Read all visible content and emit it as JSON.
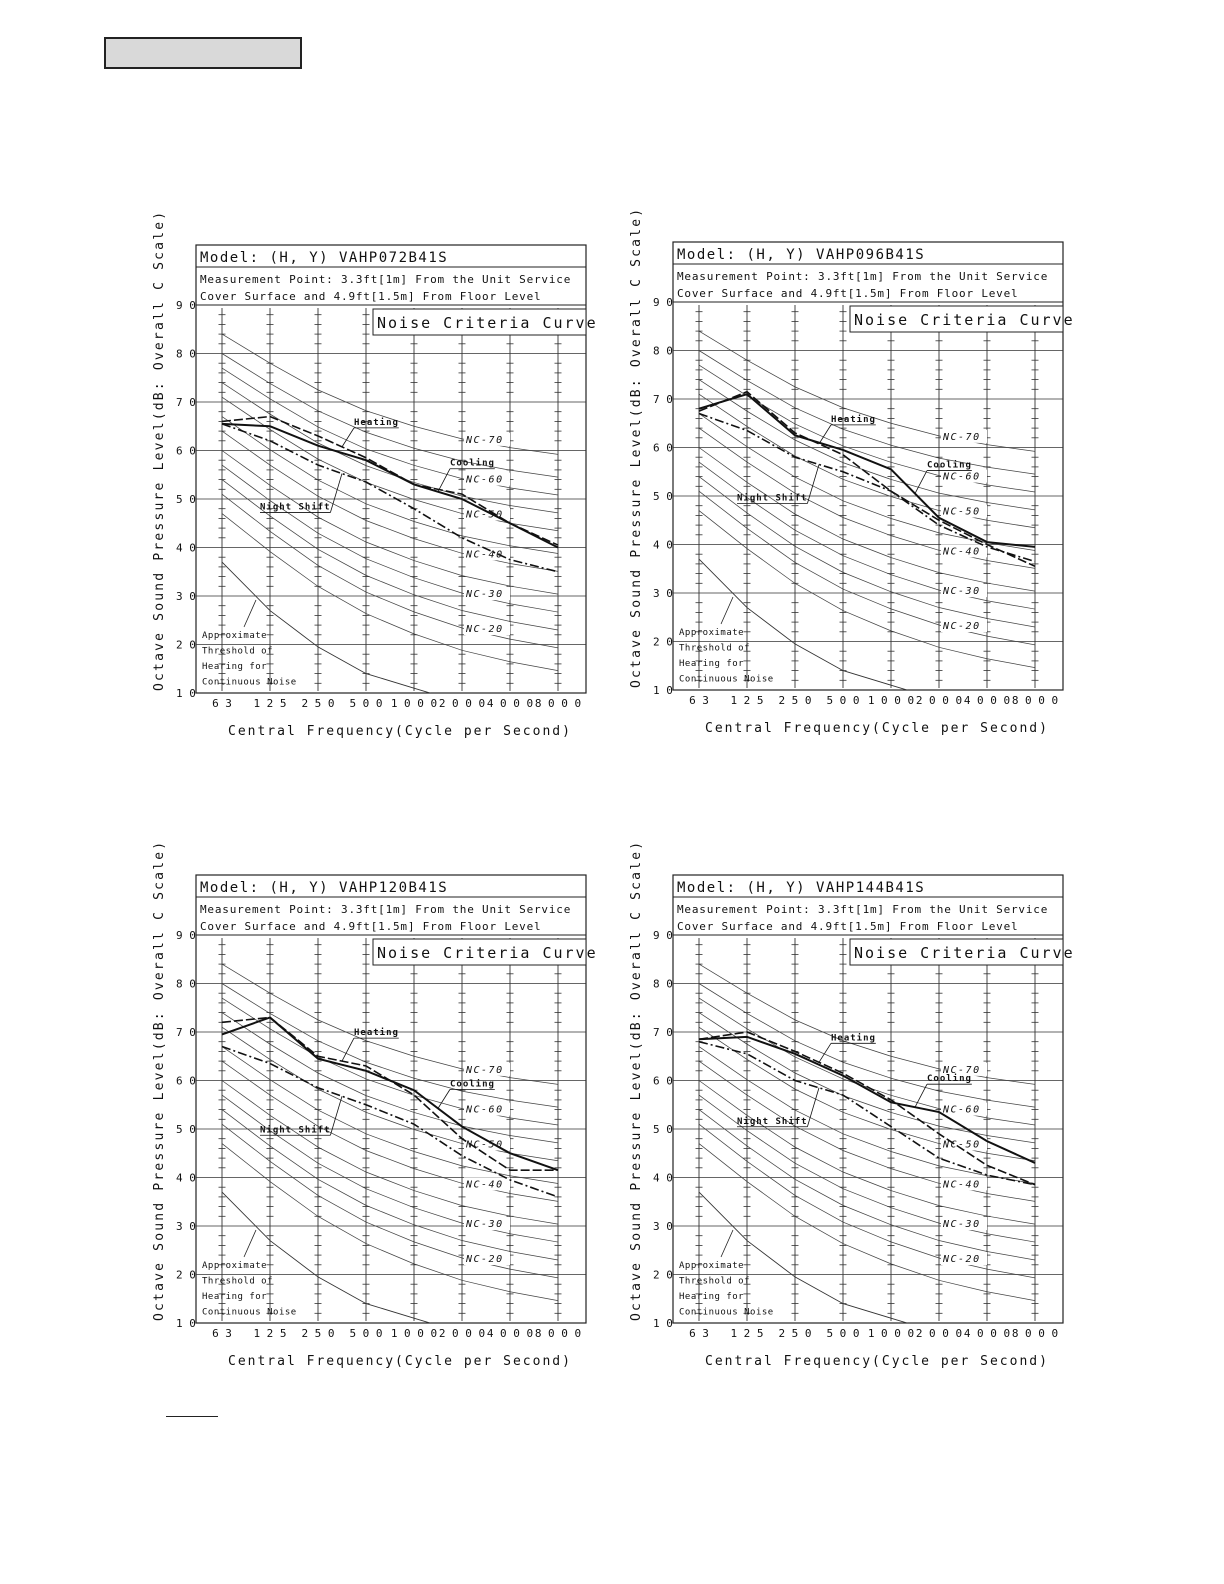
{
  "page": {
    "header_box_text": ""
  },
  "chart_data": [
    {
      "type": "line",
      "title": "Model: (H, Y) VAHP072B41S",
      "subtitle_lines": [
        "Measurement Point: 3.3ft[1m] From the Unit Service",
        "Cover Surface and 4.9ft[1.5m] From Floor Level"
      ],
      "box_label": "Noise Criteria Curve",
      "xlabel": "Central Frequency(Cycle per Second)",
      "ylabel": "Octave Sound Pressure Level(dB: Overall C Scale)",
      "categories": [
        "63",
        "125",
        "250",
        "500",
        "1000",
        "2000",
        "4000",
        "8000"
      ],
      "y_ticks": [
        "90",
        "80",
        "70",
        "60",
        "50",
        "40",
        "30",
        "20",
        "10"
      ],
      "ylim": [
        10,
        90
      ],
      "nc_labels": [
        "NC-70",
        "NC-60",
        "NC-50",
        "NC-40",
        "NC-30",
        "NC-20"
      ],
      "threshold_label": [
        "Approximate",
        "Threshold of",
        "Hearing for",
        "Continuous Noise"
      ],
      "series": [
        {
          "name": "Heating",
          "style": "dashed",
          "values": [
            66,
            67,
            63,
            58.5,
            53,
            51,
            45,
            40.5
          ]
        },
        {
          "name": "Cooling",
          "style": "solid",
          "values": [
            65.5,
            65,
            61,
            58,
            53,
            50,
            45,
            40
          ]
        },
        {
          "name": "Night Shift",
          "style": "dashdot",
          "values": [
            65.5,
            62,
            57,
            53.5,
            48,
            42,
            37.5,
            35
          ]
        }
      ],
      "annotations": [
        {
          "text": "Heating",
          "series": "Heating"
        },
        {
          "text": "Cooling",
          "series": "Cooling"
        },
        {
          "text": "Night Shift",
          "series": "Night Shift"
        }
      ]
    },
    {
      "type": "line",
      "title": "Model: (H, Y) VAHP096B41S",
      "subtitle_lines": [
        "Measurement Point: 3.3ft[1m] From the Unit Service",
        "Cover Surface and 4.9ft[1.5m] From Floor Level"
      ],
      "box_label": "Noise Criteria Curve",
      "xlabel": "Central Frequency(Cycle per Second)",
      "ylabel": "Octave Sound Pressure Level(dB: Overall C Scale)",
      "categories": [
        "63",
        "125",
        "250",
        "500",
        "1000",
        "2000",
        "4000",
        "8000"
      ],
      "y_ticks": [
        "90",
        "80",
        "70",
        "60",
        "50",
        "40",
        "30",
        "20",
        "10"
      ],
      "ylim": [
        10,
        90
      ],
      "nc_labels": [
        "NC-70",
        "NC-60",
        "NC-50",
        "NC-40",
        "NC-30",
        "NC-20"
      ],
      "threshold_label": [
        "Approximate",
        "Threshold of",
        "Hearing for",
        "Continuous Noise"
      ],
      "series": [
        {
          "name": "Heating",
          "style": "dashed",
          "values": [
            67.5,
            71.5,
            63,
            58.5,
            51,
            45,
            40,
            35.5
          ]
        },
        {
          "name": "Cooling",
          "style": "solid",
          "values": [
            68,
            71,
            62.5,
            59.5,
            55.5,
            45.5,
            40.5,
            39.5
          ]
        },
        {
          "name": "Night Shift",
          "style": "dashdot",
          "values": [
            67,
            63.5,
            58,
            55,
            51,
            44,
            39.5,
            36.5
          ]
        }
      ],
      "annotations": [
        {
          "text": "Heating",
          "series": "Heating"
        },
        {
          "text": "Cooling",
          "series": "Cooling"
        },
        {
          "text": "Night Shift",
          "series": "Night Shift"
        }
      ]
    },
    {
      "type": "line",
      "title": "Model: (H, Y) VAHP120B41S",
      "subtitle_lines": [
        "Measurement Point: 3.3ft[1m] From the Unit Service",
        "Cover Surface and 4.9ft[1.5m] From Floor Level"
      ],
      "box_label": "Noise Criteria Curve",
      "xlabel": "Central Frequency(Cycle per Second)",
      "ylabel": "Octave Sound Pressure Level(dB: Overall C Scale)",
      "categories": [
        "63",
        "125",
        "250",
        "500",
        "1000",
        "2000",
        "4000",
        "8000"
      ],
      "y_ticks": [
        "90",
        "80",
        "70",
        "60",
        "50",
        "40",
        "30",
        "20",
        "10"
      ],
      "ylim": [
        10,
        90
      ],
      "nc_labels": [
        "NC-70",
        "NC-60",
        "NC-50",
        "NC-40",
        "NC-30",
        "NC-20"
      ],
      "threshold_label": [
        "Approximate",
        "Threshold of",
        "Hearing for",
        "Continuous Noise"
      ],
      "series": [
        {
          "name": "Heating",
          "style": "dashed",
          "values": [
            72,
            73,
            65,
            63,
            57,
            48,
            41.5,
            41.5
          ]
        },
        {
          "name": "Cooling",
          "style": "solid",
          "values": [
            69.5,
            73,
            64.5,
            62,
            58,
            50.5,
            45,
            41.5
          ]
        },
        {
          "name": "Night Shift",
          "style": "dashdot",
          "values": [
            67,
            63.5,
            58.5,
            55,
            51,
            44.5,
            39.5,
            36
          ]
        }
      ],
      "annotations": [
        {
          "text": "Cooling",
          "series": "Cooling"
        },
        {
          "text": "Heating",
          "series": "Heating"
        },
        {
          "text": "Night Shift",
          "series": "Night Shift"
        }
      ]
    },
    {
      "type": "line",
      "title": "Model: (H, Y) VAHP144B41S",
      "subtitle_lines": [
        "Measurement Point: 3.3ft[1m] From the Unit Service",
        "Cover Surface and 4.9ft[1.5m] From Floor Level"
      ],
      "box_label": "Noise Criteria Curve",
      "xlabel": "Central Frequency(Cycle per Second)",
      "ylabel": "Octave Sound Pressure Level(dB: Overall C Scale)",
      "categories": [
        "63",
        "125",
        "250",
        "500",
        "1000",
        "2000",
        "4000",
        "8000"
      ],
      "y_ticks": [
        "90",
        "80",
        "70",
        "60",
        "50",
        "40",
        "30",
        "20",
        "10"
      ],
      "ylim": [
        10,
        90
      ],
      "nc_labels": [
        "NC-70",
        "NC-60",
        "NC-50",
        "NC-40",
        "NC-30",
        "NC-20"
      ],
      "threshold_label": [
        "Approximate",
        "Threshold of",
        "Hearing for",
        "Continuous Noise"
      ],
      "series": [
        {
          "name": "Heating",
          "style": "dashed",
          "values": [
            68.5,
            70,
            66,
            61.5,
            56,
            49,
            42.5,
            38.5
          ]
        },
        {
          "name": "Cooling",
          "style": "solid",
          "values": [
            68.5,
            69,
            65.5,
            61,
            55.5,
            53.5,
            47.5,
            43
          ]
        },
        {
          "name": "Night Shift",
          "style": "dashdot",
          "values": [
            68,
            65.5,
            60,
            57,
            50.5,
            44,
            40.5,
            38.5
          ]
        }
      ],
      "annotations": [
        {
          "text": "Heating",
          "series": "Heating"
        },
        {
          "text": "Cooling",
          "series": "Cooling"
        },
        {
          "text": "Night Shift",
          "series": "Night Shift"
        }
      ]
    }
  ]
}
